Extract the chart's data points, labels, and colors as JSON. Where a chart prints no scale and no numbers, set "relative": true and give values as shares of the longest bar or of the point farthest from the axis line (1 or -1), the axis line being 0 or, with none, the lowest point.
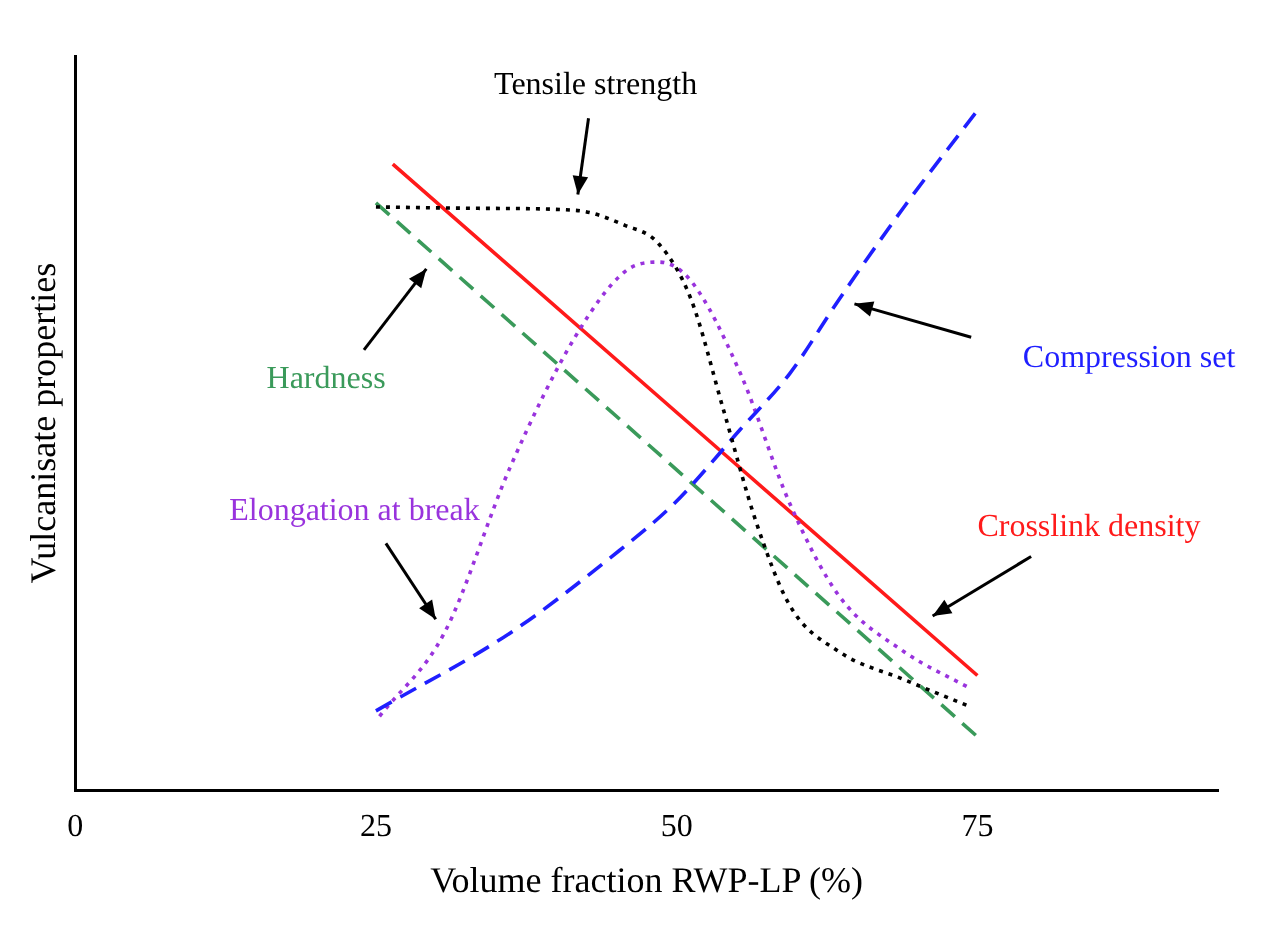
{
  "chart_data": {
    "type": "line",
    "xlabel": "Volume fraction RWP-LP (%)",
    "ylabel": "Vulcanisate properties",
    "relative": true,
    "xlim": [
      0,
      95
    ],
    "xticks": [
      0,
      25,
      50,
      75
    ],
    "grid": false,
    "legend": false,
    "marker": "none",
    "tick_labels": "x",
    "series": [
      {
        "name": "Tensile strength",
        "color": "#000000",
        "line_style": "dotted",
        "x": [
          25,
          33.5,
          41.6,
          45.7,
          48.5,
          51.2,
          53.9,
          56.6,
          59.4,
          63.5,
          68.9,
          74.4
        ],
        "values": [
          0.858,
          0.856,
          0.853,
          0.831,
          0.804,
          0.722,
          0.559,
          0.395,
          0.272,
          0.204,
          0.163,
          0.123
        ]
      },
      {
        "name": "Compression set",
        "color": "#1f1fff",
        "line_style": "dashed",
        "x": [
          25,
          36.2,
          44.4,
          49.8,
          55.3,
          59.4,
          63.5,
          68.9,
          75
        ],
        "values": [
          0.117,
          0.232,
          0.341,
          0.422,
          0.531,
          0.613,
          0.722,
          0.858,
          1.0
        ]
      },
      {
        "name": "Hardness",
        "color": "#3a9a5a",
        "line_style": "dashed",
        "x": [
          25,
          75
        ],
        "values": [
          0.864,
          0.079
        ]
      },
      {
        "name": "Elongation at break",
        "color": "#9933dd",
        "line_style": "dotted",
        "x": [
          25.3,
          30.7,
          36.2,
          41.6,
          45.7,
          48.5,
          51.2,
          55.3,
          59.4,
          63.5,
          68.9,
          74.4
        ],
        "values": [
          0.109,
          0.232,
          0.477,
          0.668,
          0.763,
          0.777,
          0.749,
          0.613,
          0.422,
          0.286,
          0.204,
          0.15
        ]
      },
      {
        "name": "Crosslink density",
        "color": "#ff1a1a",
        "line_style": "solid",
        "x": [
          26.4,
          75
        ],
        "values": [
          0.921,
          0.169
        ]
      }
    ]
  }
}
